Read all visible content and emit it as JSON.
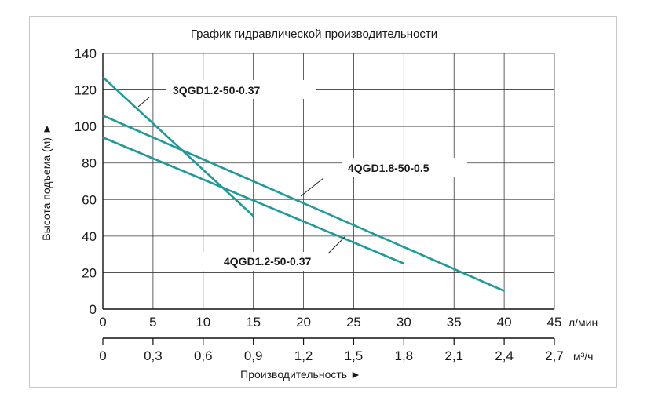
{
  "chart_data": {
    "type": "line",
    "title": "График гидравлической производительности",
    "ylabel": "Высота подъема (м) ►",
    "xlabel": "Производительность ►",
    "x_unit": "л/мин",
    "x2_unit": "м³/ч",
    "ylim": [
      0,
      140
    ],
    "xlim": [
      0,
      45
    ],
    "yticks": [
      0,
      20,
      40,
      60,
      80,
      100,
      120,
      140
    ],
    "xticks": [
      0,
      5,
      10,
      15,
      20,
      25,
      30,
      35,
      40,
      45
    ],
    "x2_tick_labels": [
      "0",
      "0,3",
      "0,6",
      "0,9",
      "1,2",
      "1,5",
      "1,8",
      "2,1",
      "2,4",
      "2,7"
    ],
    "grid": true,
    "line_color": "#1f9a9a",
    "series": [
      {
        "name": "3QGD1.2-50-0.37",
        "x": [
          0,
          15
        ],
        "y": [
          127,
          51
        ]
      },
      {
        "name": "4QGD1.8-50-0.5",
        "x": [
          0,
          40
        ],
        "y": [
          106,
          10
        ]
      },
      {
        "name": "4QGD1.2-50-0.37",
        "x": [
          0,
          30
        ],
        "y": [
          94,
          25
        ]
      }
    ]
  }
}
